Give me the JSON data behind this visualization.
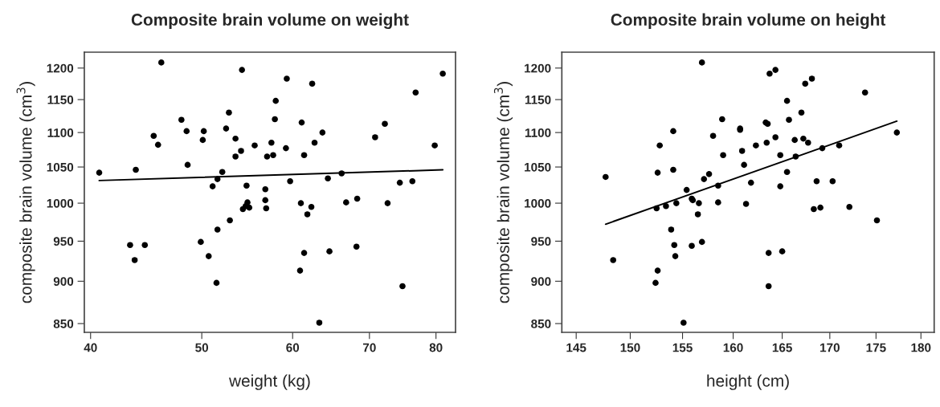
{
  "chart_data": [
    {
      "type": "scatter",
      "title": "Composite brain volume on weight",
      "xlabel": "weight (kg)",
      "ylabel": "composite brain volume (cm$^{3}$)",
      "log": "xy",
      "xlim": [
        39.5,
        83.2
      ],
      "ylim": [
        840,
        1226
      ],
      "xticks": [
        40,
        50,
        60,
        70,
        80
      ],
      "yticks": [
        850,
        900,
        950,
        1000,
        1050,
        1100,
        1150,
        1200
      ],
      "grid": false,
      "marker": "circle",
      "series": [
        {
          "color": "#000000",
          "x": [
            40.7,
            43.8,
            46.1,
            43.3,
            43.7,
            44.6,
            45.4,
            45.8,
            48.0,
            48.5,
            48.6,
            50.1,
            50.2,
            49.9,
            50.7,
            51.5,
            51.6,
            51.1,
            51.6,
            52.1,
            52.5,
            52.8,
            52.9,
            53.5,
            53.5,
            54.1,
            54.2,
            54.7,
            54.8,
            54.3,
            54.6,
            55.0,
            55.6,
            56.8,
            56.8,
            56.9,
            57.0,
            57.5,
            57.7,
            57.9,
            58.0,
            59.2,
            59.3,
            59.7,
            61.0,
            61.1,
            61.4,
            60.9,
            61.4,
            61.8,
            62.3,
            62.4,
            62.7,
            63.3,
            63.7,
            64.4,
            64.6,
            66.2,
            66.8,
            68.3,
            68.2,
            70.8,
            72.2,
            72.6,
            74.4,
            74.8,
            76.3,
            76.8,
            79.8,
            81.1
          ],
          "values": [
            1042,
            1046,
            1209,
            945,
            926,
            945,
            1095,
            1082,
            1119,
            1102,
            1053,
            1089,
            1102,
            949,
            931,
            898,
            965,
            1023,
            1033,
            1043,
            1106,
            1130,
            977,
            1065,
            1091,
            1073,
            1197,
            1024,
            1001,
            992,
            996,
            994,
            1081,
            1019,
            1004,
            993,
            1065,
            1085,
            1067,
            1120,
            1148,
            1077,
            1183,
            1030,
            1000,
            1115,
            1067,
            913,
            935,
            985,
            995,
            1175,
            1085,
            851,
            1100,
            1034,
            937,
            1041,
            1001,
            1006,
            943,
            1093,
            1113,
            1000,
            1028,
            894,
            1030,
            1161,
            1081,
            1191
          ]
        },
        {
          "type": "line",
          "color": "#000000",
          "x": [
            40.7,
            81.1
          ],
          "values": [
            1031,
            1046
          ],
          "marker": "none",
          "line_style": "solid"
        }
      ]
    },
    {
      "type": "scatter",
      "title": "Composite brain volume on height",
      "xlabel": "height (cm)",
      "ylabel": "composite brain volume (cm$^{3}$)",
      "log": "xy",
      "xlim": [
        143.7,
        181.5
      ],
      "ylim": [
        840,
        1226
      ],
      "xticks": [
        145,
        150,
        155,
        160,
        165,
        170,
        175,
        180
      ],
      "yticks": [
        850,
        900,
        950,
        1000,
        1050,
        1100,
        1150,
        1200
      ],
      "grid": false,
      "marker": "circle",
      "series": [
        {
          "color": "#000000",
          "x": [
            147.7,
            148.4,
            152.4,
            152.6,
            152.5,
            152.6,
            152.8,
            153.4,
            153.9,
            154.1,
            154.1,
            154.2,
            154.3,
            154.4,
            155.1,
            155.4,
            155.9,
            156.0,
            155.9,
            156.5,
            156.6,
            156.9,
            157.1,
            156.9,
            157.6,
            158.0,
            158.5,
            158.5,
            158.9,
            159.0,
            160.7,
            160.7,
            160.9,
            161.1,
            161.3,
            161.8,
            162.3,
            163.3,
            163.5,
            163.4,
            163.6,
            163.6,
            163.7,
            164.3,
            164.3,
            164.8,
            164.8,
            165.0,
            165.5,
            165.5,
            165.7,
            166.3,
            166.4,
            167.0,
            167.2,
            167.4,
            167.7,
            168.1,
            168.3,
            168.6,
            169.0,
            169.2,
            170.3,
            171.0,
            172.1,
            173.8,
            175.1,
            177.3
          ],
          "values": [
            1036,
            926,
            898,
            913,
            993,
            1042,
            1081,
            996,
            965,
            1046,
            1102,
            945,
            931,
            1000,
            851,
            1018,
            1006,
            1004,
            944,
            985,
            1000,
            949,
            1033,
            1209,
            1040,
            1095,
            1024,
            1001,
            1120,
            1067,
            1104,
            1106,
            1073,
            1053,
            999,
            1028,
            1081,
            1115,
            1113,
            1085,
            935,
            894,
            1191,
            1093,
            1197,
            1067,
            1023,
            937,
            1043,
            1148,
            1119,
            1089,
            1065,
            1130,
            1091,
            1175,
            1085,
            1183,
            992,
            1030,
            994,
            1077,
            1030,
            1081,
            995,
            1161,
            977,
            1100
          ]
        },
        {
          "type": "line",
          "color": "#000000",
          "x": [
            147.7,
            177.3
          ],
          "values": [
            972,
            1117
          ],
          "marker": "none",
          "line_style": "solid"
        }
      ]
    }
  ]
}
